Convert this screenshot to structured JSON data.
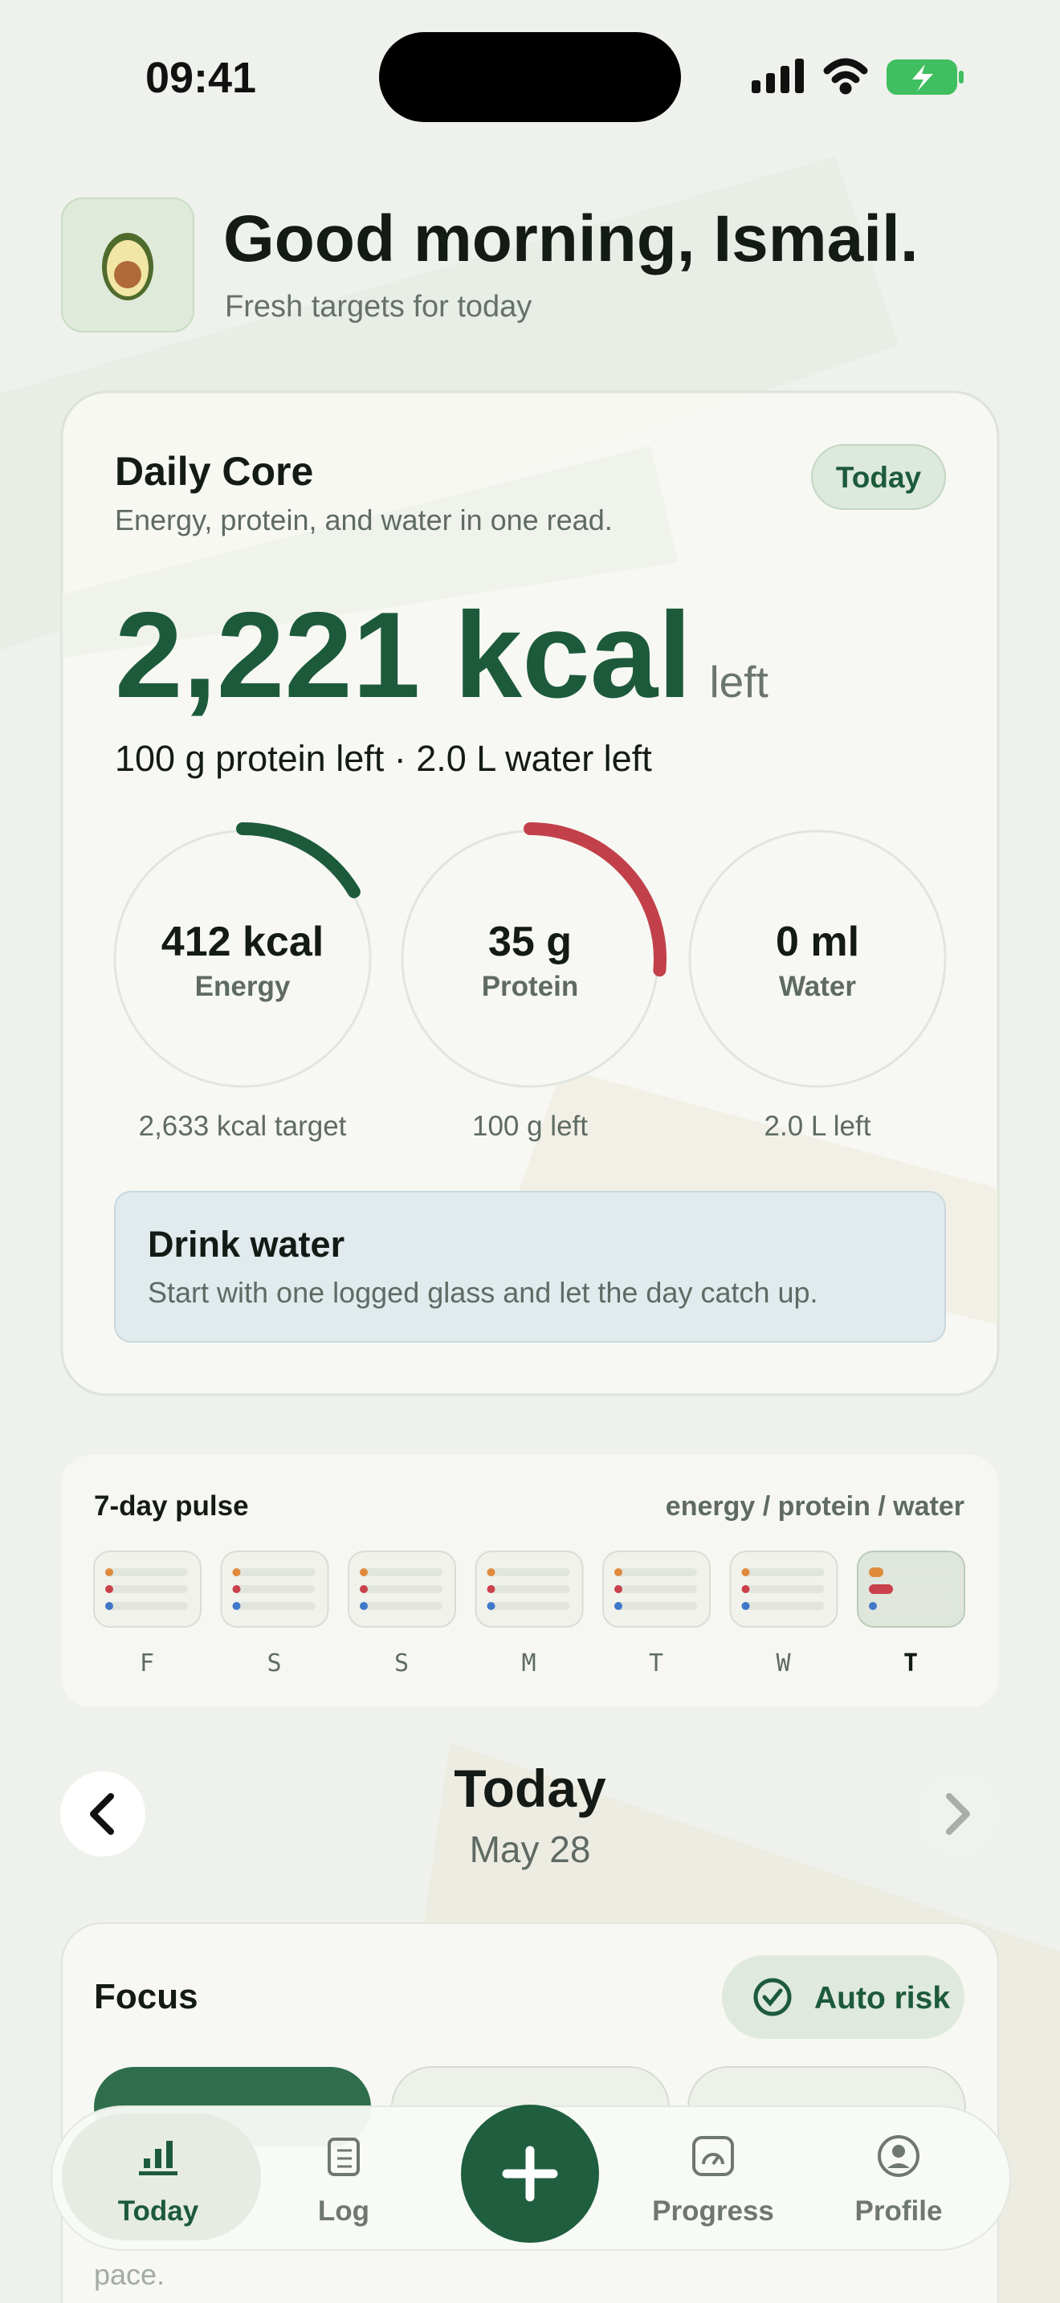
{
  "status_bar": {
    "time": "09:41"
  },
  "header": {
    "title": "Good morning, Ismail.",
    "subtitle": "Fresh targets for today"
  },
  "daily_core": {
    "title": "Daily Core",
    "subtitle": "Energy, protein, and water in one read.",
    "badge": "Today",
    "headline": "2,221 kcal",
    "headline_suffix": "left",
    "summary": "100 g protein left · 2.0 L water left",
    "rings": [
      {
        "value": "412 kcal",
        "label": "Energy",
        "caption": "2,633 kcal target"
      },
      {
        "value": "35 g",
        "label": "Protein",
        "caption": "100 g left"
      },
      {
        "value": "0 ml",
        "label": "Water",
        "caption": "2.0 L left"
      }
    ],
    "tip": {
      "title": "Drink water",
      "text": "Start with one logged glass and let the day catch up."
    }
  },
  "pulse": {
    "title": "7-day pulse",
    "legend": "energy / protein / water",
    "days": [
      "F",
      "S",
      "S",
      "M",
      "T",
      "W",
      "T"
    ]
  },
  "date_nav": {
    "title": "Today",
    "date": "May 28"
  },
  "focus": {
    "title": "Focus",
    "badge": "Auto risk",
    "footer_text": "pace."
  },
  "tab_bar": {
    "items": [
      "Today",
      "Log",
      "Progress",
      "Profile"
    ]
  }
}
